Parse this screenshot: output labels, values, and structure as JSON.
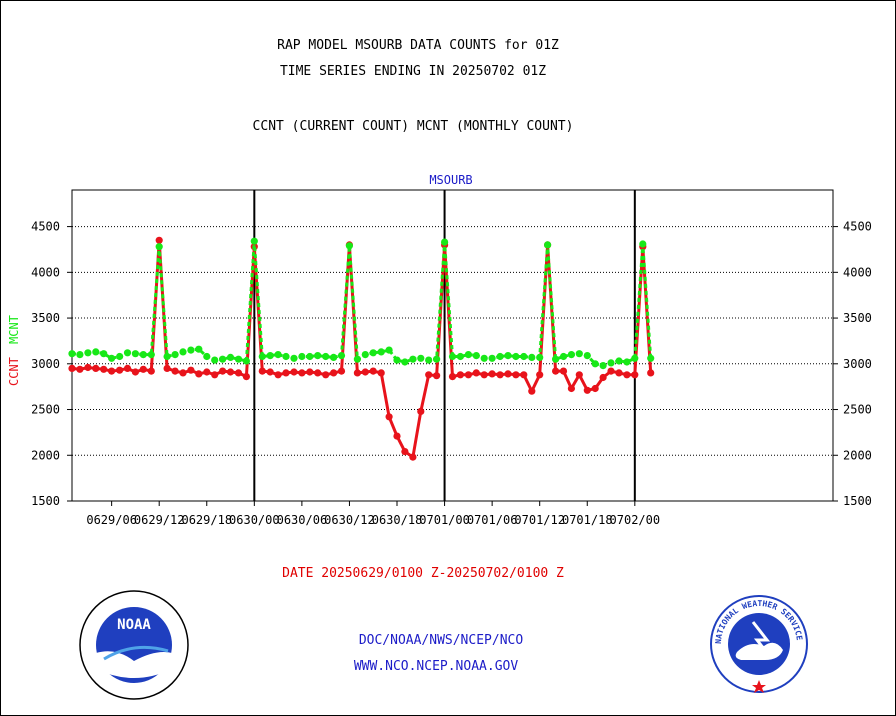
{
  "header": {
    "title_line1": "RAP MODEL MSOURB DATA COUNTS for 01Z",
    "title_line2": "TIME SERIES ENDING IN 20250702 01Z",
    "subtitle": "CCNT (CURRENT COUNT) MCNT (MONTHLY COUNT)"
  },
  "footer": {
    "date_range": "DATE 20250629/0100 Z-20250702/0100 Z",
    "org_path": "DOC/NOAA/NWS/NCEP/NCO",
    "website": "WWW.NCO.NCEP.NOAA.GOV"
  },
  "logos": {
    "noaa_text": "NOAA",
    "nws_ring": "NATIONAL WEATHER SERVICE"
  },
  "colors": {
    "ccnt": "#e8131b",
    "mcnt": "#17e817",
    "label_blue": "#1c1cc8",
    "grid": "#000000"
  },
  "chart_data": {
    "type": "line",
    "title": "MSOURB",
    "ylabel_left": [
      "CCNT",
      "MCNT"
    ],
    "ylim": [
      1500,
      4900
    ],
    "yticks": [
      1500,
      2000,
      2500,
      3000,
      3500,
      4000,
      4500
    ],
    "x_range_hours": [
      0,
      96
    ],
    "x_tick_labels": [
      "0629/06",
      "0629/12",
      "0629/18",
      "0630/00",
      "0630/06",
      "0630/12",
      "0630/18",
      "0701/00",
      "0701/06",
      "0701/12",
      "0701/18",
      "0702/00"
    ],
    "x_tick_hours": [
      5,
      11,
      17,
      23,
      29,
      35,
      41,
      47,
      53,
      59,
      65,
      71
    ],
    "day_boundaries_hours": [
      23,
      47,
      71
    ],
    "grid": true,
    "series": [
      {
        "name": "CCNT",
        "color": "#e8131b",
        "values": [
          2950,
          2940,
          2960,
          2950,
          2940,
          2920,
          2930,
          2950,
          2910,
          2940,
          2920,
          4350,
          2950,
          2920,
          2900,
          2930,
          2890,
          2910,
          2880,
          2920,
          2910,
          2900,
          2860,
          4280,
          2920,
          2910,
          2880,
          2900,
          2910,
          2900,
          2910,
          2900,
          2880,
          2900,
          2920,
          4300,
          2900,
          2910,
          2920,
          2900,
          2420,
          2210,
          2040,
          1980,
          2480,
          2880,
          2870,
          4300,
          2860,
          2880,
          2880,
          2900,
          2880,
          2890,
          2880,
          2890,
          2880,
          2880,
          2700,
          2880,
          4300,
          2920,
          2920,
          2730,
          2880,
          2710,
          2730,
          2850,
          2920,
          2900,
          2880,
          2880,
          4280,
          2900
        ]
      },
      {
        "name": "MCNT",
        "color": "#17e817",
        "values": [
          3110,
          3100,
          3120,
          3130,
          3110,
          3060,
          3080,
          3120,
          3110,
          3100,
          3100,
          4280,
          3080,
          3100,
          3130,
          3150,
          3160,
          3080,
          3040,
          3050,
          3070,
          3050,
          3030,
          4340,
          3080,
          3090,
          3100,
          3080,
          3060,
          3080,
          3080,
          3090,
          3080,
          3070,
          3090,
          4290,
          3050,
          3100,
          3120,
          3130,
          3150,
          3040,
          3020,
          3050,
          3060,
          3040,
          3050,
          4330,
          3080,
          3080,
          3100,
          3090,
          3060,
          3060,
          3080,
          3090,
          3080,
          3080,
          3070,
          3070,
          4300,
          3050,
          3080,
          3100,
          3110,
          3090,
          3000,
          2980,
          3010,
          3030,
          3020,
          3060,
          4310,
          3060
        ]
      }
    ]
  }
}
